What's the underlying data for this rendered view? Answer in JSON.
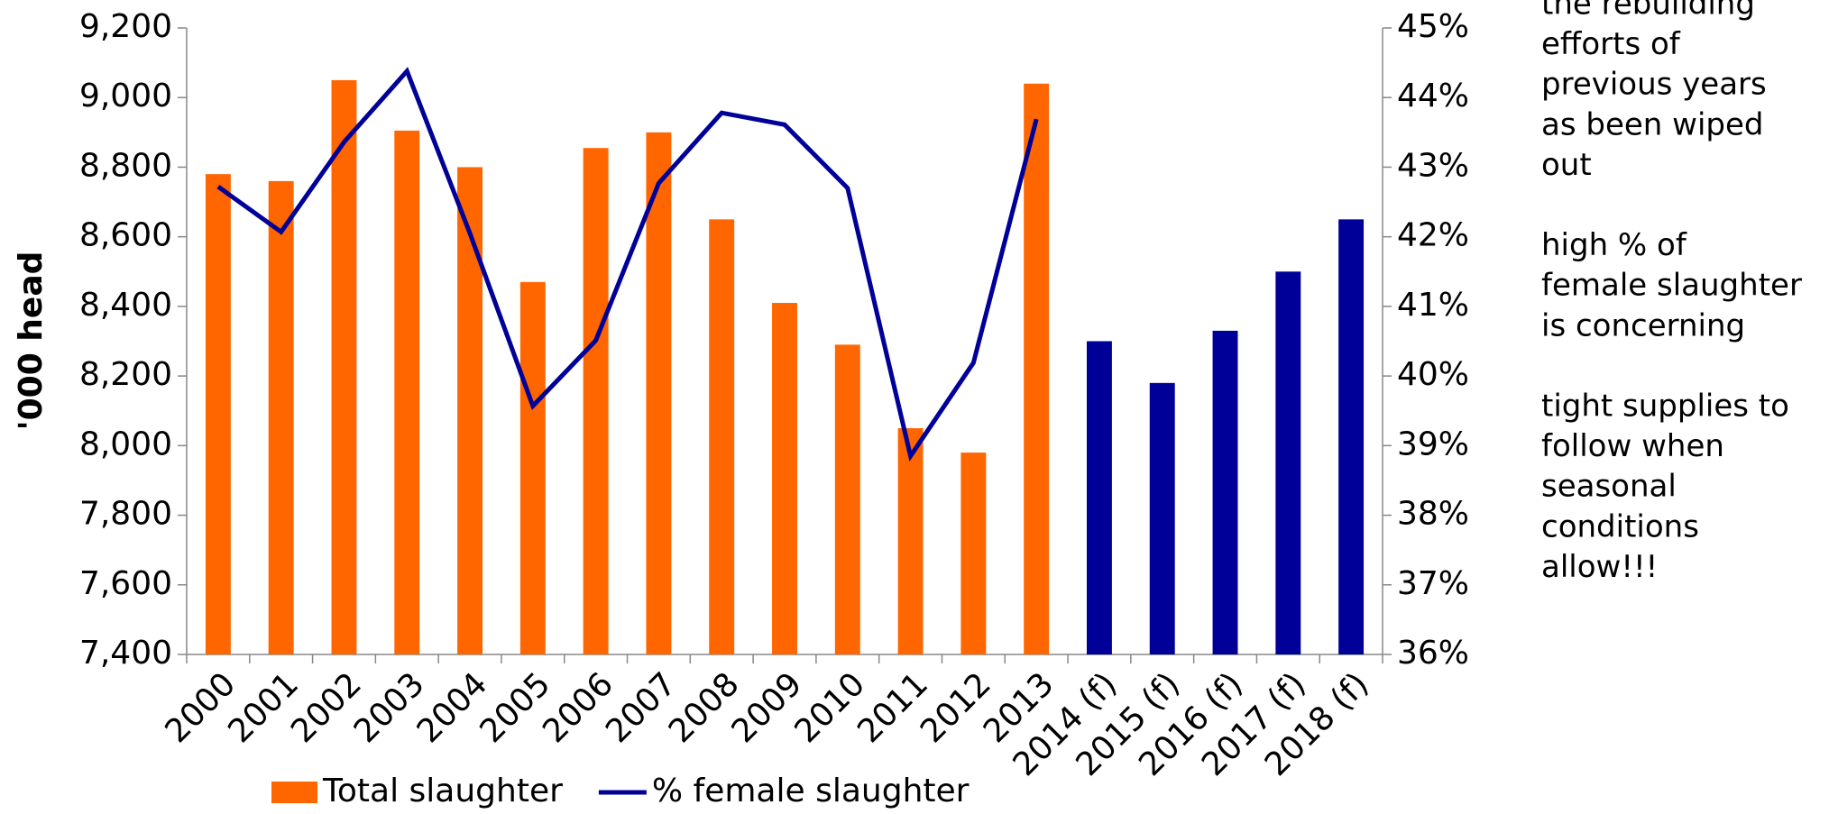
{
  "chart_data": {
    "type": "bar_line",
    "y_axis_label": "'000 head",
    "categories": [
      "2000",
      "2001",
      "2002",
      "2003",
      "2004",
      "2005",
      "2006",
      "2007",
      "2008",
      "2009",
      "2010",
      "2011",
      "2012",
      "2013",
      "2014 (f)",
      "2015 (f)",
      "2016 (f)",
      "2017 (f)",
      "2018 (f)"
    ],
    "series": [
      {
        "name": "Total slaughter",
        "type": "bar",
        "color": "#ff6600",
        "colors": [
          "#ff6600",
          "#ff6600",
          "#ff6600",
          "#ff6600",
          "#ff6600",
          "#ff6600",
          "#ff6600",
          "#ff6600",
          "#ff6600",
          "#ff6600",
          "#ff6600",
          "#ff6600",
          "#ff6600",
          "#ff6600",
          "#000099",
          "#000099",
          "#000099",
          "#000099",
          "#000099"
        ],
        "values": [
          8780,
          8760,
          9050,
          8905,
          8800,
          8470,
          8855,
          8900,
          8650,
          8410,
          8290,
          8050,
          7980,
          9040,
          8300,
          8180,
          8330,
          8500,
          8650
        ]
      },
      {
        "name": "% female slaughter",
        "type": "line",
        "axis": "y2",
        "color": "#000099",
        "values": [
          42.72,
          42.07,
          43.36,
          44.38,
          42.05,
          39.57,
          40.51,
          42.77,
          43.78,
          43.61,
          42.7,
          38.85,
          40.19,
          43.69,
          null,
          null,
          null,
          null,
          null
        ]
      }
    ],
    "ylim": [
      7400,
      9200
    ],
    "yticks": [
      {
        "value": 7400,
        "label": "7,400"
      },
      {
        "value": 7600,
        "label": "7,600"
      },
      {
        "value": 7800,
        "label": "7,800"
      },
      {
        "value": 8000,
        "label": "8,000"
      },
      {
        "value": 8200,
        "label": "8,200"
      },
      {
        "value": 8400,
        "label": "8,400"
      },
      {
        "value": 8600,
        "label": "8,600"
      },
      {
        "value": 8800,
        "label": "8,800"
      },
      {
        "value": 9000,
        "label": "9,000"
      },
      {
        "value": 9200,
        "label": "9,200"
      }
    ],
    "y2lim": [
      36,
      45
    ],
    "y2ticks": [
      {
        "value": 36,
        "label": "36%"
      },
      {
        "value": 37,
        "label": "37%"
      },
      {
        "value": 38,
        "label": "38%"
      },
      {
        "value": 39,
        "label": "39%"
      },
      {
        "value": 40,
        "label": "40%"
      },
      {
        "value": 41,
        "label": "41%"
      },
      {
        "value": 42,
        "label": "42%"
      },
      {
        "value": 43,
        "label": "43%"
      },
      {
        "value": 44,
        "label": "44%"
      },
      {
        "value": 45,
        "label": "45%"
      }
    ],
    "grid": false,
    "legend": "bottom",
    "annotation": [
      "the rebuilding",
      "efforts of",
      "previous years",
      "as been wiped",
      "out",
      "",
      "high % of",
      "female slaughter",
      "is concerning",
      "",
      "tight supplies to",
      "follow when",
      "seasonal",
      "conditions",
      "allow!!!"
    ]
  }
}
